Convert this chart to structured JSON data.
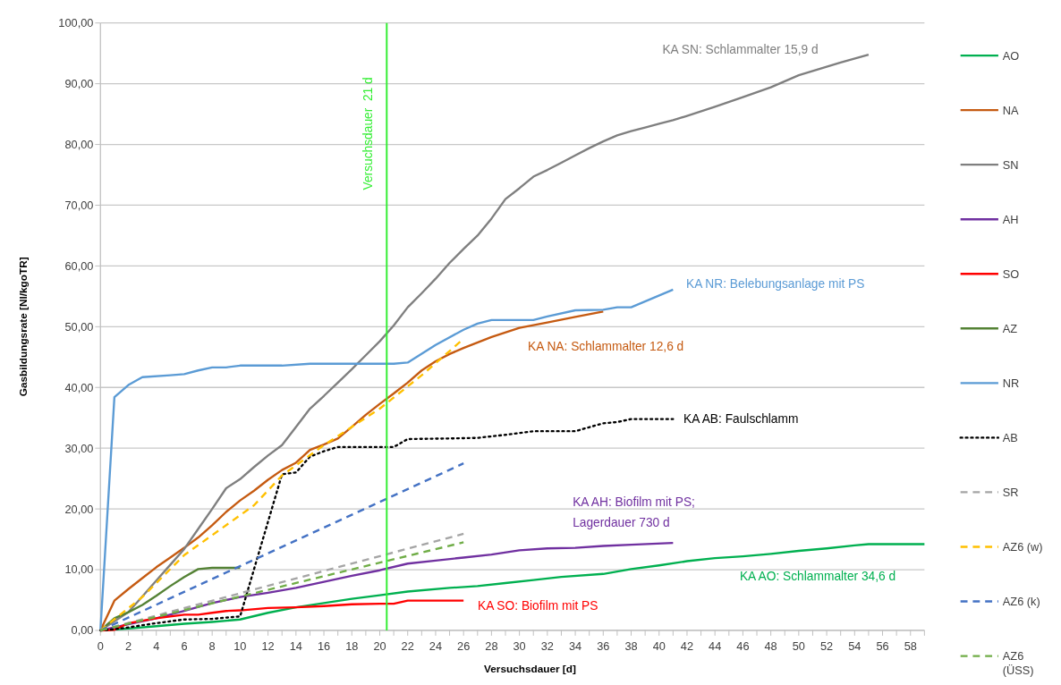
{
  "chart_data": {
    "type": "line",
    "xlabel": "Versuchsdauer [d]",
    "ylabel": "Gasbildungsrate [Nl/kgoTR]",
    "xlim": [
      0,
      59
    ],
    "xticks": [
      0,
      {
        "value": 1,
        "label": null
      },
      2,
      {
        "value": 3,
        "label": null
      },
      4,
      {
        "value": 5,
        "label": null
      },
      6,
      {
        "value": 7,
        "label": null
      },
      8,
      {
        "value": 9,
        "label": null
      },
      10,
      {
        "value": 11,
        "label": null
      },
      12,
      {
        "value": 13,
        "label": null
      },
      14,
      {
        "value": 15,
        "label": null
      },
      16,
      {
        "value": 17,
        "label": null
      },
      18,
      {
        "value": 19,
        "label": null
      },
      20,
      {
        "value": 21,
        "label": null
      },
      22,
      {
        "value": 23,
        "label": null
      },
      24,
      {
        "value": 25,
        "label": null
      },
      26,
      {
        "value": 27,
        "label": null
      },
      28,
      {
        "value": 29,
        "label": null
      },
      30,
      {
        "value": 31,
        "label": null
      },
      32,
      {
        "value": 33,
        "label": null
      },
      34,
      {
        "value": 35,
        "label": null
      },
      36,
      {
        "value": 37,
        "label": null
      },
      38,
      {
        "value": 39,
        "label": null
      },
      40,
      {
        "value": 41,
        "label": null
      },
      42,
      {
        "value": 43,
        "label": null
      },
      44,
      {
        "value": 45,
        "label": null
      },
      46,
      {
        "value": 47,
        "label": null
      },
      48,
      {
        "value": 49,
        "label": null
      },
      50,
      {
        "value": 51,
        "label": null
      },
      52,
      {
        "value": 53,
        "label": null
      },
      54,
      {
        "value": 55,
        "label": null
      },
      56,
      {
        "value": 57,
        "label": null
      },
      58,
      {
        "value": 59,
        "label": null
      }
    ],
    "ylim": [
      0,
      100
    ],
    "yticks": [
      {
        "value": 0,
        "label": "0,00"
      },
      {
        "value": 10,
        "label": "10,00"
      },
      {
        "value": 20,
        "label": "20,00"
      },
      {
        "value": 30,
        "label": "30,00"
      },
      {
        "value": 40,
        "label": "40,00"
      },
      {
        "value": 50,
        "label": "50,00"
      },
      {
        "value": 60,
        "label": "60,00"
      },
      {
        "value": 70,
        "label": "70,00"
      },
      {
        "value": 80,
        "label": "80,00"
      },
      {
        "value": 90,
        "label": "90,00"
      },
      {
        "value": 100,
        "label": "100,00"
      }
    ],
    "grid": "y",
    "legend": "right",
    "marker": "none",
    "series": [
      {
        "name": "AO",
        "color": "#00b050",
        "line_style": "solid",
        "x": [
          0,
          2,
          4,
          6,
          8,
          10,
          12,
          14,
          16,
          18,
          20,
          22,
          25,
          27,
          29,
          31,
          33,
          36,
          38,
          40,
          42,
          44,
          46,
          48,
          50,
          52,
          54,
          55,
          59
        ],
        "values": [
          0,
          0.3,
          0.7,
          1.1,
          1.4,
          1.8,
          2.9,
          3.8,
          4.5,
          5.2,
          5.8,
          6.4,
          7,
          7.3,
          7.8,
          8.3,
          8.8,
          9.3,
          10.1,
          10.7,
          11.4,
          11.9,
          12.2,
          12.6,
          13.1,
          13.5,
          14,
          14.2,
          14.2
        ]
      },
      {
        "name": "NA",
        "color": "#c55a11",
        "line_style": "solid",
        "x": [
          0,
          1,
          2,
          3,
          4,
          5,
          6,
          7,
          8,
          9,
          10,
          11,
          12,
          13,
          14,
          15,
          16,
          17,
          18,
          19,
          20,
          21,
          22,
          23,
          24,
          25,
          26,
          28,
          30,
          32,
          34,
          36
        ],
        "values": [
          0,
          4.9,
          6.8,
          8.6,
          10.4,
          12,
          13.6,
          15.3,
          17.3,
          19.5,
          21.4,
          23,
          24.8,
          26.4,
          27.6,
          29.7,
          30.6,
          31.6,
          33.5,
          35.5,
          37.3,
          39,
          40.8,
          42.8,
          44.3,
          45.5,
          46.5,
          48.3,
          49.8,
          50.7,
          51.6,
          52.5
        ]
      },
      {
        "name": "SN",
        "color": "#7f7f7f",
        "line_style": "solid",
        "x": [
          0,
          1,
          2,
          3,
          4,
          5,
          6,
          7,
          8,
          9,
          10,
          11,
          12,
          13,
          14,
          15,
          16,
          17,
          18,
          19,
          20,
          21,
          22,
          23,
          24,
          25,
          26,
          27,
          28,
          29,
          30,
          31,
          32,
          33,
          34,
          35,
          36,
          37,
          38,
          39,
          40,
          41,
          42,
          44,
          46,
          48,
          50,
          52,
          53,
          55
        ],
        "values": [
          0,
          1.5,
          3,
          5.6,
          8.2,
          10.8,
          13.4,
          16.7,
          20,
          23.4,
          24.9,
          26.9,
          28.8,
          30.5,
          33.5,
          36.5,
          38.6,
          40.8,
          43,
          45.3,
          47.6,
          50.2,
          53.2,
          55.5,
          57.9,
          60.5,
          62.8,
          65,
          67.8,
          71,
          72.8,
          74.7,
          75.8,
          77,
          78.2,
          79.4,
          80.5,
          81.5,
          82.2,
          82.8,
          83.4,
          84,
          84.7,
          86.2,
          87.8,
          89.4,
          91.4,
          92.8,
          93.5,
          94.8
        ]
      },
      {
        "name": "AH",
        "color": "#7030a0",
        "line_style": "solid",
        "x": [
          0,
          2,
          4,
          6,
          8,
          10,
          12,
          14,
          16,
          18,
          20,
          22,
          24,
          26,
          28,
          30,
          32,
          34,
          36,
          38,
          41
        ],
        "values": [
          0,
          1,
          2,
          3.2,
          4.5,
          5.5,
          6.2,
          7,
          8,
          9,
          9.9,
          11,
          11.5,
          12,
          12.5,
          13.2,
          13.5,
          13.6,
          13.9,
          14.1,
          14.4
        ]
      },
      {
        "name": "SO",
        "color": "#ff0000",
        "line_style": "solid",
        "x": [
          0,
          1,
          2,
          3,
          4,
          5,
          6,
          7,
          8,
          9,
          10,
          12,
          14,
          16,
          18,
          20,
          21,
          22,
          26
        ],
        "values": [
          0,
          0.1,
          1.2,
          1.6,
          2,
          2.3,
          2.6,
          2.6,
          2.9,
          3.2,
          3.3,
          3.7,
          3.8,
          4,
          4.3,
          4.4,
          4.4,
          4.9,
          4.9
        ]
      },
      {
        "name": "AZ",
        "color": "#548235",
        "line_style": "solid",
        "x": [
          0,
          1,
          2,
          3,
          4,
          5,
          6,
          7,
          8,
          10
        ],
        "values": [
          0,
          2,
          3,
          4.2,
          5.7,
          7.3,
          8.8,
          10.1,
          10.3,
          10.3
        ]
      },
      {
        "name": "NR",
        "color": "#5b9bd5",
        "line_style": "solid",
        "x": [
          0,
          1,
          2,
          3,
          5,
          6,
          7,
          8,
          9,
          10,
          13,
          15,
          20,
          21,
          22,
          24,
          26,
          27,
          28,
          31,
          32,
          34,
          36,
          37,
          38,
          41
        ],
        "values": [
          0,
          38.4,
          40.4,
          41.7,
          42,
          42.2,
          42.8,
          43.3,
          43.3,
          43.6,
          43.6,
          43.9,
          43.9,
          43.9,
          44.1,
          47,
          49.5,
          50.5,
          51.1,
          51.1,
          51.7,
          52.7,
          52.8,
          53.2,
          53.2,
          56.1
        ]
      },
      {
        "name": "AB",
        "color": "#000000",
        "line_style": "dotted",
        "x": [
          0,
          1,
          2,
          4,
          6,
          8,
          10,
          13,
          14,
          15,
          16,
          17,
          21,
          22,
          25,
          27,
          29,
          31,
          34,
          36,
          37,
          38,
          41
        ],
        "values": [
          0,
          0.2,
          0.5,
          1.2,
          1.8,
          1.9,
          2.3,
          25.7,
          26,
          28.6,
          29.5,
          30.2,
          30.2,
          31.5,
          31.6,
          31.7,
          32.2,
          32.8,
          32.8,
          34.1,
          34.3,
          34.8,
          34.8
        ]
      },
      {
        "name": "SR",
        "color": "#a5a5a5",
        "line_style": "dashed",
        "x": [
          0,
          26
        ],
        "values": [
          0,
          15.9
        ]
      },
      {
        "name": "AZ6 (w)",
        "color": "#ffc000",
        "line_style": "dashed",
        "x": [
          0,
          3,
          6,
          11,
          13,
          16,
          20,
          23,
          26
        ],
        "values": [
          0,
          5.5,
          12.4,
          20.6,
          25.5,
          30.5,
          36.5,
          42,
          48
        ]
      },
      {
        "name": "AZ6 (k)",
        "color": "#4472c4",
        "line_style": "dashed",
        "x": [
          0,
          26
        ],
        "values": [
          0,
          27.5
        ]
      },
      {
        "name": "AZ6 (ÜSS)",
        "color": "#70ad47",
        "line_style": "dashed",
        "x": [
          0,
          26
        ],
        "values": [
          0,
          14.5
        ]
      }
    ],
    "ref_lines": [
      {
        "axis": "x",
        "value": 20.5,
        "label": "Versuchsdauer  21 d",
        "color": "#33ee33",
        "line_style": "solid"
      }
    ],
    "annotations": [
      "KA SN: Schlammalter 15,9 d",
      "KA NR: Belebungsanlage mit PS",
      "KA NA: Schlammalter 12,6 d",
      "KA AB: Faulschlamm",
      "KA AH: Biofilm mit PS;\nLagerdauer 730 d",
      "KA AO: Schlammalter 34,6 d",
      "KA SO: Biofilm mit PS"
    ]
  }
}
